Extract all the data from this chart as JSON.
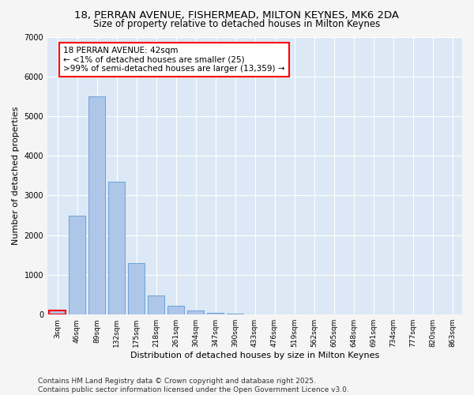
{
  "title_line1": "18, PERRAN AVENUE, FISHERMEAD, MILTON KEYNES, MK6 2DA",
  "title_line2": "Size of property relative to detached houses in Milton Keynes",
  "xlabel": "Distribution of detached houses by size in Milton Keynes",
  "ylabel": "Number of detached properties",
  "categories": [
    "3sqm",
    "46sqm",
    "89sqm",
    "132sqm",
    "175sqm",
    "218sqm",
    "261sqm",
    "304sqm",
    "347sqm",
    "390sqm",
    "433sqm",
    "476sqm",
    "519sqm",
    "562sqm",
    "605sqm",
    "648sqm",
    "691sqm",
    "734sqm",
    "777sqm",
    "820sqm",
    "863sqm"
  ],
  "values": [
    100,
    2500,
    5500,
    3350,
    1300,
    480,
    220,
    100,
    50,
    20,
    10,
    5,
    2,
    1,
    0,
    0,
    0,
    0,
    0,
    0,
    0
  ],
  "bar_color": "#aec6e8",
  "bar_edge_color": "#5b9bd5",
  "highlight_bar_edge_color": "#ff0000",
  "annotation_text": "18 PERRAN AVENUE: 42sqm\n← <1% of detached houses are smaller (25)\n>99% of semi-detached houses are larger (13,359) →",
  "annotation_box_edge_color": "#ff0000",
  "ylim": [
    0,
    7000
  ],
  "yticks": [
    0,
    1000,
    2000,
    3000,
    4000,
    5000,
    6000,
    7000
  ],
  "plot_bg_color": "#dce8f5",
  "fig_bg_color": "#f5f5f5",
  "grid_color": "#ffffff",
  "footer_line1": "Contains HM Land Registry data © Crown copyright and database right 2025.",
  "footer_line2": "Contains public sector information licensed under the Open Government Licence v3.0.",
  "title_fontsize": 9.5,
  "subtitle_fontsize": 8.5,
  "axis_label_fontsize": 8,
  "tick_fontsize": 6.5,
  "annotation_fontsize": 7.5,
  "footer_fontsize": 6.5
}
